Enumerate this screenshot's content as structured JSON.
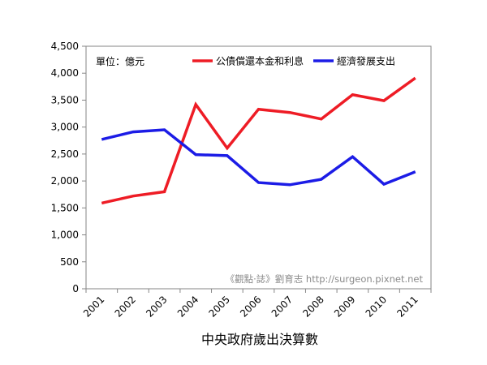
{
  "chart_data": {
    "type": "line",
    "categories": [
      "2001",
      "2002",
      "2003",
      "2004",
      "2005",
      "2006",
      "2007",
      "2008",
      "2009",
      "2010",
      "2011"
    ],
    "series": [
      {
        "name": "公債償還本金和利息",
        "color": "#ee1c25",
        "values": [
          1590,
          1720,
          1800,
          3420,
          2610,
          3330,
          3270,
          3150,
          3600,
          3490,
          3910
        ]
      },
      {
        "name": "經濟發展支出",
        "color": "#1c1ce6",
        "values": [
          2770,
          2910,
          2950,
          2490,
          2470,
          1970,
          1930,
          2030,
          2450,
          1940,
          2170
        ]
      }
    ],
    "ylim": [
      0,
      4500
    ],
    "yticks": [
      0,
      500,
      1000,
      1500,
      2000,
      2500,
      3000,
      3500,
      4000,
      4500
    ],
    "ytick_labels": [
      "0",
      "500",
      "1,000",
      "1,500",
      "2,000",
      "2,500",
      "3,000",
      "3,500",
      "4,000",
      "4,500"
    ],
    "unit_label": "單位：億元",
    "xlabel": "中央政府歲出決算數",
    "ylabel": "",
    "title": "",
    "watermark": "《觀點‧誌》劉育志 http://surgeon.pixnet.net",
    "grid": false,
    "legend_position": "top-right"
  }
}
